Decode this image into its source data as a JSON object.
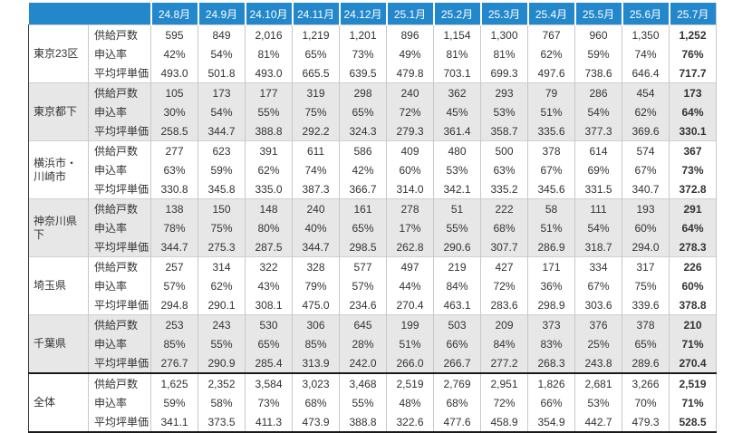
{
  "chart_data": {
    "type": "table",
    "column_headers": [
      "24.8月",
      "24.9月",
      "24.10月",
      "24.11月",
      "24.12月",
      "25.1月",
      "25.2月",
      "25.3月",
      "25.4月",
      "25.5月",
      "25.6月",
      "25.7月"
    ],
    "metric_labels": [
      "供給戸数",
      "申込率",
      "平均坪単価"
    ],
    "groups": [
      {
        "region": "東京23区",
        "metrics": [
          {
            "label": "供給戸数",
            "values": [
              "595",
              "849",
              "2,016",
              "1,219",
              "1,201",
              "896",
              "1,154",
              "1,300",
              "767",
              "960",
              "1,350",
              "1,252"
            ]
          },
          {
            "label": "申込率",
            "values": [
              "42%",
              "54%",
              "81%",
              "65%",
              "73%",
              "49%",
              "81%",
              "81%",
              "62%",
              "59%",
              "74%",
              "76%"
            ]
          },
          {
            "label": "平均坪単価",
            "values": [
              "493.0",
              "501.8",
              "493.0",
              "665.5",
              "639.5",
              "479.8",
              "703.1",
              "699.3",
              "497.6",
              "738.6",
              "646.4",
              "717.7"
            ]
          }
        ]
      },
      {
        "region": "東京都下",
        "metrics": [
          {
            "label": "供給戸数",
            "values": [
              "105",
              "173",
              "177",
              "319",
              "298",
              "240",
              "362",
              "293",
              "79",
              "286",
              "454",
              "173"
            ]
          },
          {
            "label": "申込率",
            "values": [
              "30%",
              "54%",
              "55%",
              "75%",
              "65%",
              "72%",
              "45%",
              "53%",
              "51%",
              "54%",
              "62%",
              "64%"
            ]
          },
          {
            "label": "平均坪単価",
            "values": [
              "258.5",
              "344.7",
              "388.8",
              "292.2",
              "324.3",
              "279.3",
              "361.4",
              "358.7",
              "335.6",
              "377.3",
              "369.6",
              "330.1"
            ]
          }
        ]
      },
      {
        "region": "横浜市・川崎市",
        "metrics": [
          {
            "label": "供給戸数",
            "values": [
              "277",
              "623",
              "391",
              "611",
              "586",
              "409",
              "480",
              "500",
              "378",
              "614",
              "574",
              "367"
            ]
          },
          {
            "label": "申込率",
            "values": [
              "63%",
              "59%",
              "62%",
              "74%",
              "42%",
              "60%",
              "53%",
              "63%",
              "67%",
              "69%",
              "67%",
              "73%"
            ]
          },
          {
            "label": "平均坪単価",
            "values": [
              "330.8",
              "345.8",
              "335.0",
              "387.3",
              "366.7",
              "314.0",
              "342.1",
              "335.2",
              "345.6",
              "331.5",
              "340.7",
              "372.8"
            ]
          }
        ]
      },
      {
        "region": "神奈川県下",
        "metrics": [
          {
            "label": "供給戸数",
            "values": [
              "138",
              "150",
              "148",
              "240",
              "161",
              "278",
              "51",
              "222",
              "58",
              "111",
              "193",
              "291"
            ]
          },
          {
            "label": "申込率",
            "values": [
              "78%",
              "75%",
              "80%",
              "40%",
              "65%",
              "17%",
              "55%",
              "68%",
              "51%",
              "54%",
              "60%",
              "64%"
            ]
          },
          {
            "label": "平均坪単価",
            "values": [
              "344.7",
              "275.3",
              "287.5",
              "344.7",
              "298.5",
              "262.8",
              "290.6",
              "307.7",
              "286.9",
              "318.7",
              "294.0",
              "278.3"
            ]
          }
        ]
      },
      {
        "region": "埼玉県",
        "metrics": [
          {
            "label": "供給戸数",
            "values": [
              "257",
              "314",
              "322",
              "328",
              "577",
              "497",
              "219",
              "427",
              "171",
              "334",
              "317",
              "226"
            ]
          },
          {
            "label": "申込率",
            "values": [
              "57%",
              "62%",
              "43%",
              "79%",
              "57%",
              "44%",
              "84%",
              "72%",
              "36%",
              "67%",
              "75%",
              "60%"
            ]
          },
          {
            "label": "平均坪単価",
            "values": [
              "294.8",
              "290.1",
              "308.1",
              "475.0",
              "234.6",
              "270.4",
              "463.1",
              "283.6",
              "298.9",
              "303.6",
              "339.6",
              "378.8"
            ]
          }
        ]
      },
      {
        "region": "千葉県",
        "metrics": [
          {
            "label": "供給戸数",
            "values": [
              "253",
              "243",
              "530",
              "306",
              "645",
              "199",
              "503",
              "209",
              "373",
              "376",
              "378",
              "210"
            ]
          },
          {
            "label": "申込率",
            "values": [
              "85%",
              "55%",
              "65%",
              "85%",
              "28%",
              "51%",
              "66%",
              "84%",
              "83%",
              "25%",
              "65%",
              "71%"
            ]
          },
          {
            "label": "平均坪単価",
            "values": [
              "276.7",
              "290.9",
              "285.4",
              "313.9",
              "242.0",
              "266.0",
              "266.7",
              "277.2",
              "268.3",
              "243.8",
              "289.6",
              "270.4"
            ]
          }
        ]
      },
      {
        "region": "全体",
        "metrics": [
          {
            "label": "供給戸数",
            "values": [
              "1,625",
              "2,352",
              "3,584",
              "3,023",
              "3,468",
              "2,519",
              "2,769",
              "2,951",
              "1,826",
              "2,681",
              "3,266",
              "2,519"
            ]
          },
          {
            "label": "申込率",
            "values": [
              "59%",
              "58%",
              "73%",
              "68%",
              "55%",
              "48%",
              "68%",
              "72%",
              "66%",
              "53%",
              "70%",
              "71%"
            ]
          },
          {
            "label": "平均坪単価",
            "values": [
              "341.1",
              "373.5",
              "411.3",
              "473.9",
              "388.8",
              "322.6",
              "477.6",
              "458.9",
              "354.9",
              "442.7",
              "479.3",
              "528.5"
            ]
          }
        ]
      }
    ],
    "layout": {
      "banded_group_indexes": [
        1,
        3,
        5
      ],
      "heavy_rule_before_group_index": 6,
      "bold_column_index": 11
    }
  },
  "style": {
    "header_bg": "#2287CB",
    "header_text": "#ffffff",
    "band_bg": "#e7e7e7",
    "grid_line": "#c8c8c8",
    "heavy_line": "#1a1a1a",
    "text_color": "#333333"
  }
}
